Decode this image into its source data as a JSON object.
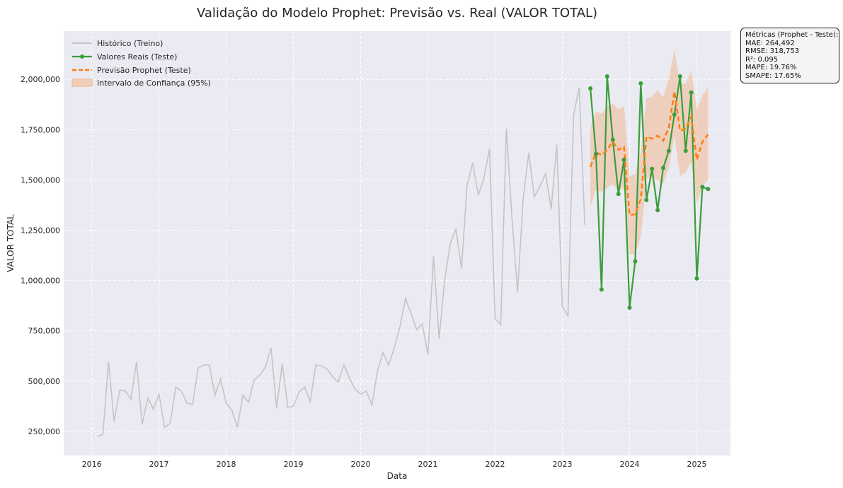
{
  "chart_data": {
    "type": "line",
    "title": "Validação do Modelo Prophet: Previsão vs. Real (VALOR TOTAL)",
    "xlabel": "Data",
    "ylabel": "VALOR TOTAL",
    "xlim": [
      "2015-08-01",
      "2025-07-01"
    ],
    "ylim": [
      130000,
      2240000
    ],
    "x_ticks": [
      "2016",
      "2017",
      "2018",
      "2019",
      "2020",
      "2021",
      "2022",
      "2023",
      "2024",
      "2025"
    ],
    "y_ticks": [
      250000,
      500000,
      750000,
      1000000,
      1250000,
      1500000,
      1750000,
      2000000
    ],
    "y_tick_labels": [
      "250,000",
      "500,000",
      "750,000",
      "1,000,000",
      "1,250,000",
      "1,500,000",
      "1,750,000",
      "2,000,000"
    ],
    "grid": true,
    "legend_position": "top-left",
    "legend": [
      "Histórico (Treino)",
      "Valores Reais (Teste)",
      "Previsão Prophet (Teste)",
      "Intervalo de Confiança (95%)"
    ],
    "colors": {
      "history": "#c4c4c4",
      "actual": "#3a9e3a",
      "forecast": "#ff7f0e",
      "interval": "#f2b48a",
      "plot_bg": "#eaeaf2"
    },
    "series": [
      {
        "name": "Histórico (Treino)",
        "x": [
          "2016-02",
          "2016-03",
          "2016-04",
          "2016-05",
          "2016-06",
          "2016-07",
          "2016-08",
          "2016-09",
          "2016-10",
          "2016-11",
          "2016-12",
          "2017-01",
          "2017-02",
          "2017-03",
          "2017-04",
          "2017-05",
          "2017-06",
          "2017-07",
          "2017-08",
          "2017-09",
          "2017-10",
          "2017-11",
          "2017-12",
          "2018-01",
          "2018-02",
          "2018-03",
          "2018-04",
          "2018-05",
          "2018-06",
          "2018-07",
          "2018-08",
          "2018-09",
          "2018-10",
          "2018-11",
          "2018-12",
          "2019-01",
          "2019-02",
          "2019-03",
          "2019-04",
          "2019-05",
          "2019-06",
          "2019-07",
          "2019-08",
          "2019-09",
          "2019-10",
          "2019-11",
          "2019-12",
          "2020-01",
          "2020-02",
          "2020-03",
          "2020-04",
          "2020-05",
          "2020-06",
          "2020-07",
          "2020-08",
          "2020-09",
          "2020-10",
          "2020-11",
          "2020-12",
          "2021-01",
          "2021-02",
          "2021-03",
          "2021-04",
          "2021-05",
          "2021-06",
          "2021-07",
          "2021-08",
          "2021-09",
          "2021-10",
          "2021-11",
          "2021-12",
          "2022-01",
          "2022-02",
          "2022-03",
          "2022-04",
          "2022-05",
          "2022-06",
          "2022-07",
          "2022-08",
          "2022-09",
          "2022-10",
          "2022-11",
          "2022-12",
          "2023-01",
          "2023-02",
          "2023-03",
          "2023-04",
          "2023-05"
        ],
        "values": [
          225000,
          235000,
          595000,
          300000,
          455000,
          450000,
          410000,
          595000,
          285000,
          415000,
          360000,
          435000,
          270000,
          290000,
          470000,
          450000,
          390000,
          385000,
          565000,
          580000,
          580000,
          430000,
          510000,
          390000,
          355000,
          270000,
          430000,
          395000,
          505000,
          530000,
          570000,
          665000,
          365000,
          585000,
          370000,
          375000,
          445000,
          470000,
          400000,
          580000,
          575000,
          560000,
          520000,
          495000,
          580000,
          515000,
          460000,
          435000,
          450000,
          380000,
          550000,
          640000,
          580000,
          665000,
          770000,
          910000,
          835000,
          755000,
          785000,
          630000,
          1120000,
          710000,
          1005000,
          1185000,
          1255000,
          1060000,
          1475000,
          1585000,
          1425000,
          1510000,
          1655000,
          810000,
          780000,
          1755000,
          1310000,
          940000,
          1405000,
          1635000,
          1415000,
          1470000,
          1530000,
          1355000,
          1675000,
          870000,
          825000,
          1820000,
          1960000,
          1275000
        ]
      },
      {
        "name": "Valores Reais (Teste)",
        "x": [
          "2023-06",
          "2023-07",
          "2023-08",
          "2023-09",
          "2023-10",
          "2023-11",
          "2023-12",
          "2024-01",
          "2024-02",
          "2024-03",
          "2024-04",
          "2024-05",
          "2024-06",
          "2024-07",
          "2024-08",
          "2024-09",
          "2024-10",
          "2024-11",
          "2024-12",
          "2025-01",
          "2025-02",
          "2025-03"
        ],
        "values": [
          1955000,
          1630000,
          955000,
          2015000,
          1700000,
          1430000,
          1600000,
          865000,
          1095000,
          1980000,
          1400000,
          1555000,
          1350000,
          1560000,
          1645000,
          1825000,
          2015000,
          1645000,
          1935000,
          1010000,
          1465000,
          1455000
        ]
      },
      {
        "name": "Previsão Prophet (Teste)",
        "x": [
          "2023-06",
          "2023-07",
          "2023-08",
          "2023-09",
          "2023-10",
          "2023-11",
          "2023-12",
          "2024-01",
          "2024-02",
          "2024-03",
          "2024-04",
          "2024-05",
          "2024-06",
          "2024-07",
          "2024-08",
          "2024-09",
          "2024-10",
          "2024-11",
          "2024-12",
          "2025-01",
          "2025-02",
          "2025-03"
        ],
        "values": [
          1565000,
          1635000,
          1625000,
          1650000,
          1690000,
          1650000,
          1665000,
          1325000,
          1330000,
          1405000,
          1715000,
          1705000,
          1720000,
          1695000,
          1760000,
          1940000,
          1745000,
          1755000,
          1815000,
          1600000,
          1690000,
          1725000
        ]
      },
      {
        "name": "Intervalo de Confiança (95%)",
        "x": [
          "2023-06",
          "2023-07",
          "2023-08",
          "2023-09",
          "2023-10",
          "2023-11",
          "2023-12",
          "2024-01",
          "2024-02",
          "2024-03",
          "2024-04",
          "2024-05",
          "2024-06",
          "2024-07",
          "2024-08",
          "2024-09",
          "2024-10",
          "2024-11",
          "2024-12",
          "2025-01",
          "2025-02",
          "2025-03"
        ],
        "lower": [
          1370000,
          1450000,
          1440000,
          1460000,
          1480000,
          1450000,
          1460000,
          1130000,
          1130000,
          1220000,
          1510000,
          1510000,
          1500000,
          1480000,
          1560000,
          1720000,
          1520000,
          1540000,
          1590000,
          1380000,
          1470000,
          1500000
        ],
        "upper": [
          1760000,
          1840000,
          1830000,
          1860000,
          1880000,
          1850000,
          1870000,
          1520000,
          1530000,
          1640000,
          1910000,
          1910000,
          1950000,
          1910000,
          2000000,
          2150000,
          1975000,
          1980000,
          2040000,
          1850000,
          1920000,
          1960000
        ]
      }
    ]
  },
  "metrics_box": {
    "lines": [
      "Métricas (Prophet - Teste):",
      "MAE: 264,492",
      "RMSE: 318,753",
      "R²: 0.095",
      "MAPE: 19.76%",
      "SMAPE: 17.65%"
    ]
  }
}
